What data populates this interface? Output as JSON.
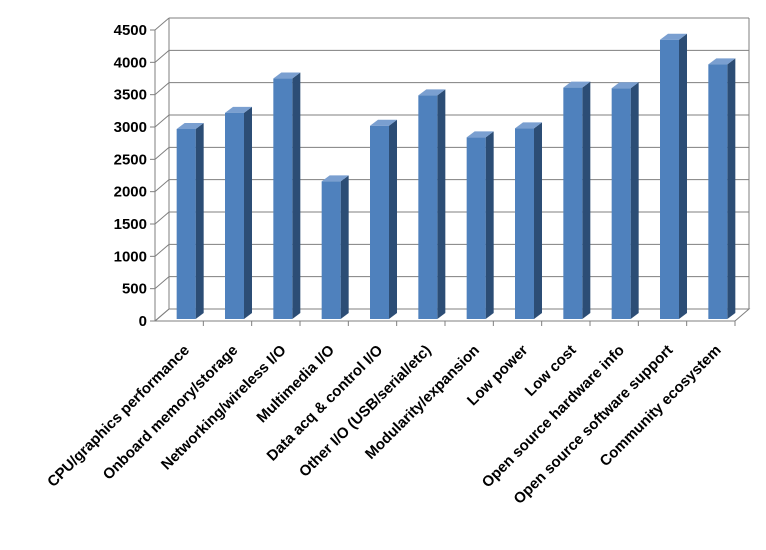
{
  "chart_data": {
    "type": "bar",
    "categories": [
      "CPU/graphics performance",
      "Onboard memory/storage",
      "Networking/wireless I/O",
      "Multimedia I/O",
      "Data acq & control I/O",
      "Other I/O (USB/serial/etc)",
      "Modularity/expansion",
      "Low power",
      "Low cost",
      "Open source hardware info",
      "Open source software support",
      "Community ecosystem"
    ],
    "values": [
      3000,
      3250,
      3780,
      2190,
      3050,
      3520,
      2870,
      3010,
      3640,
      3630,
      4380,
      4000
    ],
    "ylim": [
      0,
      4500
    ],
    "yticks": [
      0,
      500,
      1000,
      1500,
      2000,
      2500,
      3000,
      3500,
      4000,
      4500
    ],
    "grid": true,
    "style": "3d-columns",
    "colors": {
      "bar_front": "#4f81bd",
      "bar_side": "#2c4d75",
      "bar_top": "#7a9fd0",
      "grid": "#7f7f7f",
      "axis": "#7f7f7f"
    }
  }
}
